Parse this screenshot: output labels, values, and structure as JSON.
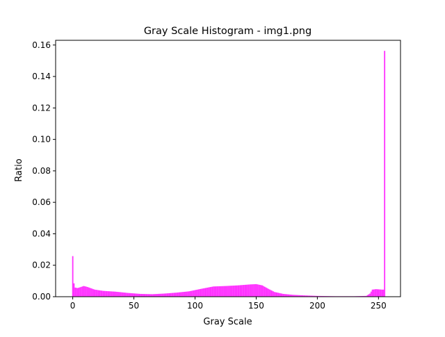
{
  "chart_data": {
    "type": "bar",
    "title": "Gray Scale Histogram - img1.png",
    "xlabel": "Gray Scale",
    "ylabel": "Ratio",
    "xlim": [
      -14.0,
      268.0
    ],
    "ylim": [
      0,
      0.163
    ],
    "x_ticks": [
      0,
      50,
      100,
      150,
      200,
      250
    ],
    "y_ticks": [
      0.0,
      0.02,
      0.04,
      0.06,
      0.08,
      0.1,
      0.12,
      0.14,
      0.16
    ],
    "y_tick_labels": [
      "0.00",
      "0.02",
      "0.04",
      "0.06",
      "0.08",
      "0.10",
      "0.12",
      "0.14",
      "0.16"
    ],
    "bar_color": "#ff33ff",
    "grid": false,
    "legend": "none",
    "bins": 256,
    "key_points": [
      {
        "x": 0,
        "y": 0.0258
      },
      {
        "x": 1,
        "y": 0.0085
      },
      {
        "x": 2,
        "y": 0.0058
      },
      {
        "x": 4,
        "y": 0.0055
      },
      {
        "x": 6,
        "y": 0.006
      },
      {
        "x": 9,
        "y": 0.0068
      },
      {
        "x": 12,
        "y": 0.0062
      },
      {
        "x": 18,
        "y": 0.0045
      },
      {
        "x": 25,
        "y": 0.0037
      },
      {
        "x": 35,
        "y": 0.0032
      },
      {
        "x": 45,
        "y": 0.0024
      },
      {
        "x": 55,
        "y": 0.0018
      },
      {
        "x": 65,
        "y": 0.0016
      },
      {
        "x": 75,
        "y": 0.002
      },
      {
        "x": 85,
        "y": 0.0026
      },
      {
        "x": 95,
        "y": 0.0034
      },
      {
        "x": 105,
        "y": 0.005
      },
      {
        "x": 115,
        "y": 0.0065
      },
      {
        "x": 125,
        "y": 0.0068
      },
      {
        "x": 135,
        "y": 0.0072
      },
      {
        "x": 145,
        "y": 0.0078
      },
      {
        "x": 150,
        "y": 0.008
      },
      {
        "x": 155,
        "y": 0.0072
      },
      {
        "x": 160,
        "y": 0.005
      },
      {
        "x": 165,
        "y": 0.003
      },
      {
        "x": 172,
        "y": 0.0018
      },
      {
        "x": 180,
        "y": 0.0012
      },
      {
        "x": 190,
        "y": 0.0008
      },
      {
        "x": 200,
        "y": 0.0005
      },
      {
        "x": 215,
        "y": 0.0003
      },
      {
        "x": 230,
        "y": 0.0003
      },
      {
        "x": 240,
        "y": 0.0005
      },
      {
        "x": 243,
        "y": 0.002
      },
      {
        "x": 245,
        "y": 0.0045
      },
      {
        "x": 248,
        "y": 0.0048
      },
      {
        "x": 253,
        "y": 0.0045
      },
      {
        "x": 254,
        "y": 0.0045
      },
      {
        "x": 255,
        "y": 0.1563
      }
    ]
  }
}
